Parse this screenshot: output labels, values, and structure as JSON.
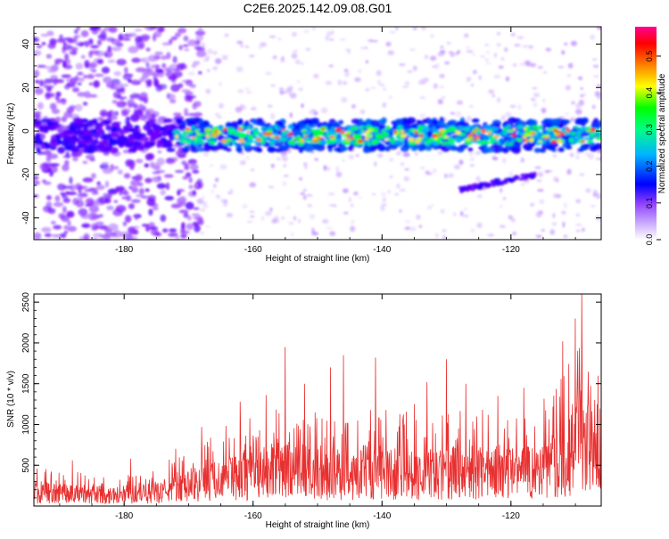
{
  "title": "C2E6.2025.142.09.08.G01",
  "chart_data": [
    {
      "type": "heatmap",
      "xlabel": "Height of straight line (km)",
      "ylabel": "Frequency (Hz)",
      "xlim": [
        -194,
        -106
      ],
      "ylim": [
        -50,
        48
      ],
      "xticks": [
        -180,
        -160,
        -140,
        -120
      ],
      "yticks": [
        -40,
        -20,
        0,
        20,
        40
      ],
      "colorbar": {
        "label": "Normalized spectral amplitude",
        "range": [
          0.0,
          0.58
        ],
        "ticks": [
          0.0,
          0.1,
          0.2,
          0.3,
          0.4,
          0.5
        ],
        "colormap": [
          "#ffffff",
          "#a0a0ff",
          "#8000ff",
          "#0000ff",
          "#00c8ff",
          "#00ff80",
          "#00ff00",
          "#ffff00",
          "#ff8000",
          "#ff0000",
          "#ff00a0"
        ]
      },
      "features": {
        "main_band_center_hz": -2,
        "main_band_halfwidth_hz": 5,
        "main_band_strong_from_km": -172,
        "secondary_branch": {
          "from_km": -128,
          "to_km": -116,
          "from_hz": -27,
          "to_hz": -20
        }
      }
    },
    {
      "type": "line",
      "xlabel": "Height of straight line (km)",
      "ylabel": "SNR (10 * v/v)",
      "xlim": [
        -194,
        -106
      ],
      "ylim": [
        0,
        2600
      ],
      "xticks": [
        -180,
        -160,
        -140,
        -120
      ],
      "yticks": [
        500,
        1000,
        1500,
        2000,
        2500
      ],
      "series": [
        {
          "color": "#e83030",
          "envelope": [
            [
              -194,
              300
            ],
            [
              -186,
              260
            ],
            [
              -178,
              240
            ],
            [
              -174,
              320
            ],
            [
              -172,
              420
            ],
            [
              -168,
              520
            ],
            [
              -164,
              620
            ],
            [
              -160,
              700
            ],
            [
              -156,
              780
            ],
            [
              -152,
              760
            ],
            [
              -148,
              680
            ],
            [
              -144,
              740
            ],
            [
              -140,
              780
            ],
            [
              -136,
              720
            ],
            [
              -132,
              700
            ],
            [
              -128,
              760
            ],
            [
              -124,
              760
            ],
            [
              -120,
              720
            ],
            [
              -116,
              780
            ],
            [
              -112,
              1000
            ],
            [
              -110,
              1350
            ],
            [
              -108,
              1300
            ],
            [
              -106,
              900
            ]
          ],
          "peaks": [
            [
              -188,
              560
            ],
            [
              -179,
              580
            ],
            [
              -172,
              700
            ],
            [
              -168,
              970
            ],
            [
              -162,
              1280
            ],
            [
              -158,
              1360
            ],
            [
              -155,
              1950
            ],
            [
              -152,
              1500
            ],
            [
              -148,
              1700
            ],
            [
              -146,
              1850
            ],
            [
              -141,
              1820
            ],
            [
              -135,
              1250
            ],
            [
              -133,
              1520
            ],
            [
              -130,
              1800
            ],
            [
              -127,
              1500
            ],
            [
              -122,
              1350
            ],
            [
              -118,
              1450
            ],
            [
              -112,
              2020
            ],
            [
              -110,
              2300
            ],
            [
              -109,
              2600
            ],
            [
              -107,
              1300
            ]
          ]
        }
      ]
    }
  ]
}
